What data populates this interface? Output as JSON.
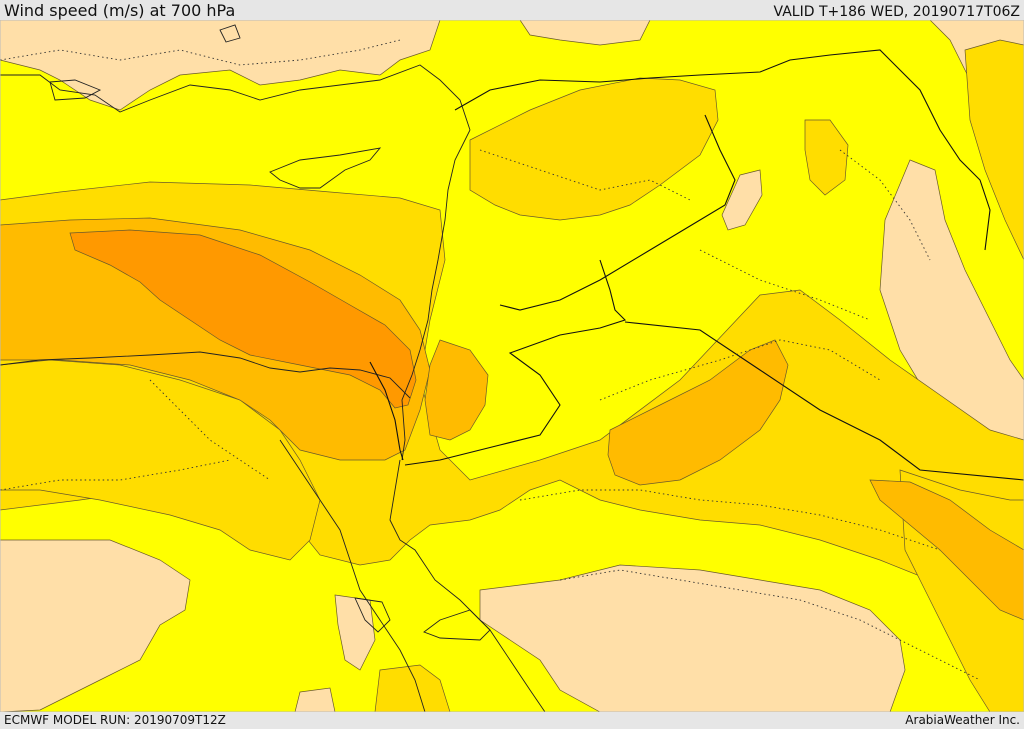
{
  "header": {
    "title": "Wind speed (m/s) at 700 hPa",
    "valid": "VALID T+186 WED, 20190717T06Z"
  },
  "footer": {
    "model_run": "ECMWF MODEL RUN: 20190709T12Z",
    "credit": "ArabiaWeather Inc."
  },
  "colors": {
    "background": "#ffff00",
    "light_band": "#ffdfa8",
    "band_1": "#ffdd00",
    "band_2": "#ffbb00",
    "band_3": "#ff9900",
    "water_gap": "#ffffff",
    "frame": "#e6e6e6"
  }
}
